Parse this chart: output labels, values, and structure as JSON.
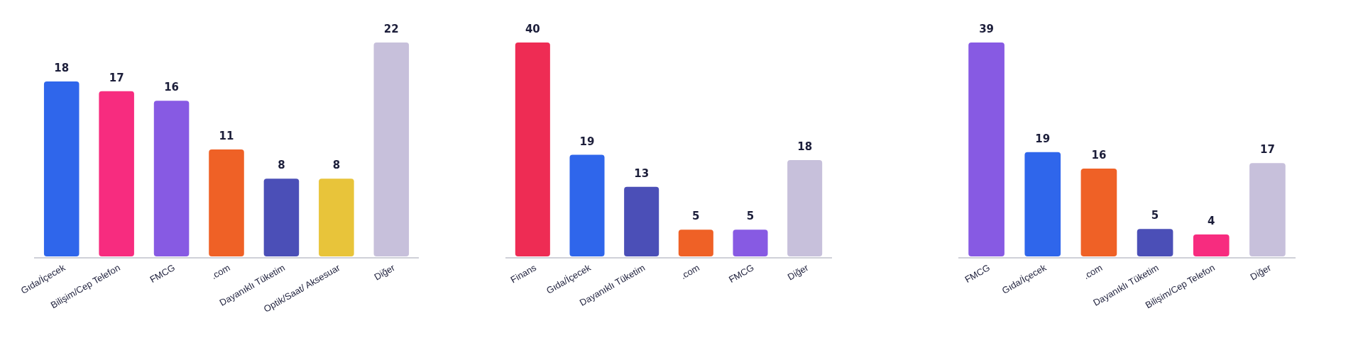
{
  "chart_data": [
    {
      "type": "bar",
      "categories": [
        "Gıda/İçecek",
        "Bilişim/Cep Telefon",
        "FMCG",
        ".com",
        "Dayanıklı Tüketim",
        "Optik/Saat/ Aksesuar",
        "Diğer"
      ],
      "values": [
        18,
        17,
        16,
        11,
        8,
        8,
        22
      ],
      "colors": [
        "#2f66eb",
        "#f72c7f",
        "#875ae3",
        "#ef6126",
        "#4b4fb7",
        "#e8c43a",
        "#c7c0db"
      ],
      "data_labels": true
    },
    {
      "type": "bar",
      "categories": [
        "Finans",
        "Gıda/İçecek",
        "Dayanıklı Tüketim",
        ".com",
        "FMCG",
        "Diğer"
      ],
      "values": [
        40,
        19,
        13,
        5,
        5,
        18
      ],
      "colors": [
        "#ee2c54",
        "#2f66eb",
        "#4b4fb7",
        "#ef6126",
        "#875ae3",
        "#c7c0db"
      ],
      "data_labels": true
    },
    {
      "type": "bar",
      "categories": [
        "FMCG",
        "Gıda/İçecek",
        ".com",
        "Dayanıklı Tüketim",
        "Bilişim/Cep Telefon",
        "Diğer"
      ],
      "values": [
        39,
        19,
        16,
        5,
        4,
        17
      ],
      "colors": [
        "#875ae3",
        "#2f66eb",
        "#ef6126",
        "#4b4fb7",
        "#f72c7f",
        "#c7c0db"
      ],
      "data_labels": true
    }
  ]
}
